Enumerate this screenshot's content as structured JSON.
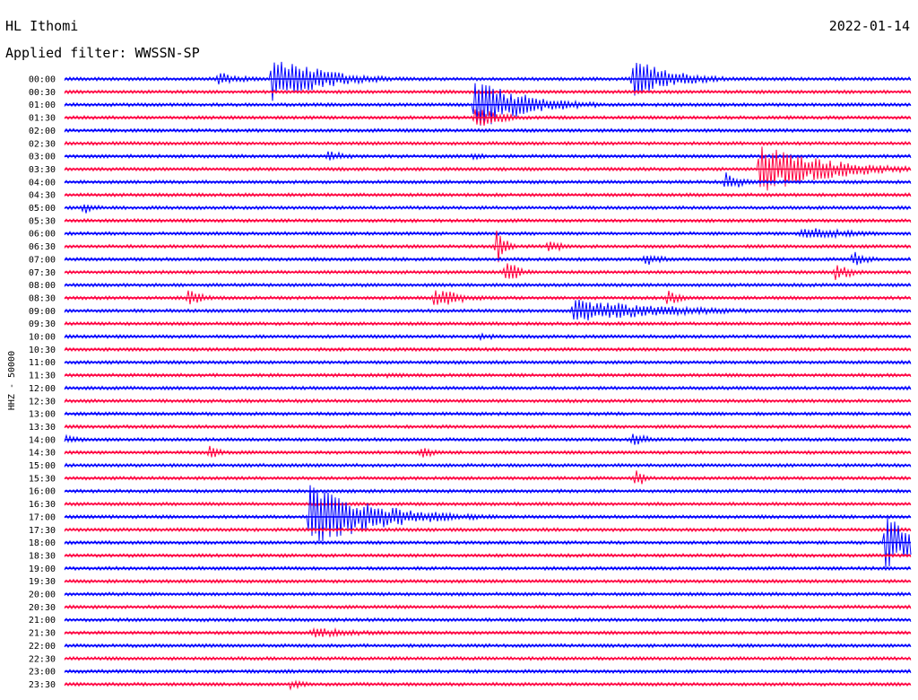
{
  "header": {
    "station": "HL Ithomi",
    "date": "2022-01-14",
    "filter_label": "Applied filter: WWSSN-SP"
  },
  "chart_data": {
    "type": "line",
    "title": "HL Ithomi",
    "date": "2022-01-14",
    "filter": "WWSSN-SP",
    "ylabel": "HHZ - 50000",
    "row_interval_minutes": 30,
    "colors": [
      "#0000ff",
      "#ff0040"
    ],
    "tick_labels": [
      "00:00",
      "00:30",
      "01:00",
      "01:30",
      "02:00",
      "02:30",
      "03:00",
      "03:30",
      "04:00",
      "04:30",
      "05:00",
      "05:30",
      "06:00",
      "06:30",
      "07:00",
      "07:30",
      "08:00",
      "08:30",
      "09:00",
      "09:30",
      "10:00",
      "10:30",
      "11:00",
      "11:30",
      "12:00",
      "12:30",
      "13:00",
      "13:30",
      "14:00",
      "14:30",
      "15:00",
      "15:30",
      "16:00",
      "16:30",
      "17:00",
      "17:30",
      "18:00",
      "18:30",
      "19:00",
      "19:30",
      "20:00",
      "20:30",
      "21:00",
      "21:30",
      "22:00",
      "22:30",
      "23:00",
      "23:30"
    ],
    "events": [
      {
        "row": 0,
        "pos": 0.18,
        "amp": 8,
        "dur": 0.04
      },
      {
        "row": 0,
        "pos": 0.245,
        "amp": 28,
        "dur": 0.06
      },
      {
        "row": 0,
        "pos": 0.67,
        "amp": 24,
        "dur": 0.05
      },
      {
        "row": 2,
        "pos": 0.485,
        "amp": 30,
        "dur": 0.06
      },
      {
        "row": 3,
        "pos": 0.485,
        "amp": 12,
        "dur": 0.04
      },
      {
        "row": 6,
        "pos": 0.31,
        "amp": 7,
        "dur": 0.03
      },
      {
        "row": 6,
        "pos": 0.48,
        "amp": 5,
        "dur": 0.02
      },
      {
        "row": 7,
        "pos": 0.82,
        "amp": 30,
        "dur": 0.08
      },
      {
        "row": 8,
        "pos": 0.78,
        "amp": 14,
        "dur": 0.02
      },
      {
        "row": 10,
        "pos": 0.02,
        "amp": 10,
        "dur": 0.015
      },
      {
        "row": 12,
        "pos": 0.87,
        "amp": 8,
        "dur": 0.07
      },
      {
        "row": 13,
        "pos": 0.51,
        "amp": 26,
        "dur": 0.01
      },
      {
        "row": 13,
        "pos": 0.57,
        "amp": 9,
        "dur": 0.02
      },
      {
        "row": 14,
        "pos": 0.685,
        "amp": 9,
        "dur": 0.02
      },
      {
        "row": 14,
        "pos": 0.93,
        "amp": 10,
        "dur": 0.02
      },
      {
        "row": 15,
        "pos": 0.52,
        "amp": 18,
        "dur": 0.015
      },
      {
        "row": 15,
        "pos": 0.91,
        "amp": 12,
        "dur": 0.02
      },
      {
        "row": 17,
        "pos": 0.145,
        "amp": 10,
        "dur": 0.02
      },
      {
        "row": 17,
        "pos": 0.435,
        "amp": 12,
        "dur": 0.04
      },
      {
        "row": 17,
        "pos": 0.71,
        "amp": 10,
        "dur": 0.02
      },
      {
        "row": 18,
        "pos": 0.6,
        "amp": 14,
        "dur": 0.12
      },
      {
        "row": 20,
        "pos": 0.49,
        "amp": 4,
        "dur": 0.04
      },
      {
        "row": 23,
        "pos": 0.38,
        "amp": 5,
        "dur": 0.03
      },
      {
        "row": 28,
        "pos": 0.0,
        "amp": 5,
        "dur": 0.03
      },
      {
        "row": 28,
        "pos": 0.67,
        "amp": 9,
        "dur": 0.02
      },
      {
        "row": 29,
        "pos": 0.17,
        "amp": 9,
        "dur": 0.015
      },
      {
        "row": 29,
        "pos": 0.42,
        "amp": 10,
        "dur": 0.015
      },
      {
        "row": 31,
        "pos": 0.675,
        "amp": 14,
        "dur": 0.01
      },
      {
        "row": 34,
        "pos": 0.29,
        "amp": 36,
        "dur": 0.08
      },
      {
        "row": 34,
        "pos": 0.38,
        "amp": 10,
        "dur": 0.01
      },
      {
        "row": 36,
        "pos": 0.97,
        "amp": 32,
        "dur": 0.04
      },
      {
        "row": 43,
        "pos": 0.29,
        "amp": 6,
        "dur": 0.09
      },
      {
        "row": 47,
        "pos": 0.265,
        "amp": 7,
        "dur": 0.02
      }
    ]
  }
}
